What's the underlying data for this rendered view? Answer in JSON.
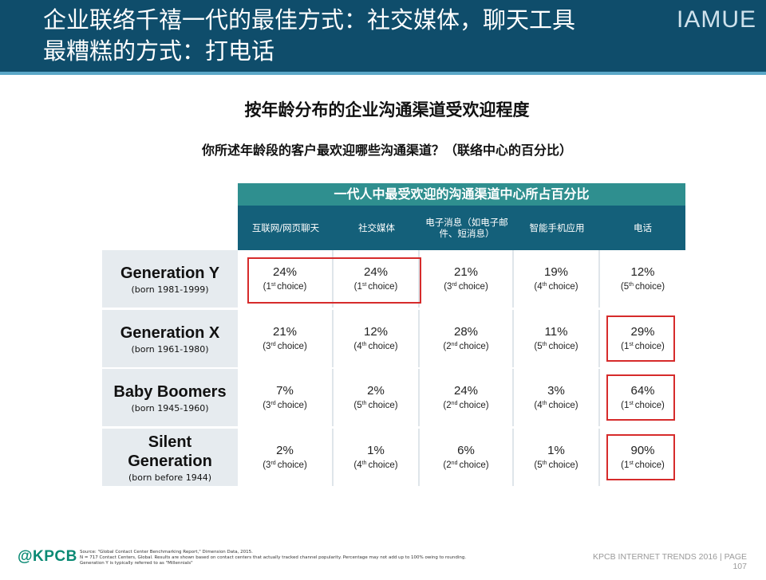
{
  "header": {
    "title_line1": "企业联络千禧一代的最佳方式：社交媒体，聊天工具",
    "title_line2": "最糟糕的方式：打电话",
    "brand": "IAMUE"
  },
  "chart": {
    "title": "按年龄分布的企业沟通渠道受欢迎程度",
    "subtitle": "你所述年龄段的客户最欢迎哪些沟通渠道？（联络中心的百分比）",
    "banner": "一代人中最受欢迎的沟通渠道中心所占百分比",
    "columns": [
      "互联网/网页聊天",
      "社交媒体",
      "电子消息（如电子邮件、短消息）",
      "智能手机应用",
      "电话"
    ]
  },
  "chart_data": {
    "type": "table",
    "title": "按年龄分布的企业沟通渠道受欢迎程度",
    "columns": [
      "互联网/网页聊天",
      "社交媒体",
      "电子消息（如电子邮件、短消息）",
      "智能手机应用",
      "电话"
    ],
    "rows": [
      {
        "name": "Generation Y",
        "born": "(born 1981-1999)",
        "cells": [
          {
            "value": "24%",
            "rank": "1",
            "suffix": "st"
          },
          {
            "value": "24%",
            "rank": "1",
            "suffix": "st"
          },
          {
            "value": "21%",
            "rank": "3",
            "suffix": "rd"
          },
          {
            "value": "19%",
            "rank": "4",
            "suffix": "th"
          },
          {
            "value": "12%",
            "rank": "5",
            "suffix": "th"
          }
        ]
      },
      {
        "name": "Generation X",
        "born": "(born 1961-1980)",
        "cells": [
          {
            "value": "21%",
            "rank": "3",
            "suffix": "rd"
          },
          {
            "value": "12%",
            "rank": "4",
            "suffix": "th"
          },
          {
            "value": "28%",
            "rank": "2",
            "suffix": "nd"
          },
          {
            "value": "11%",
            "rank": "5",
            "suffix": "th"
          },
          {
            "value": "29%",
            "rank": "1",
            "suffix": "st"
          }
        ]
      },
      {
        "name": "Baby Boomers",
        "born": "(born 1945-1960)",
        "cells": [
          {
            "value": "7%",
            "rank": "3",
            "suffix": "rd"
          },
          {
            "value": "2%",
            "rank": "5",
            "suffix": "th"
          },
          {
            "value": "24%",
            "rank": "2",
            "suffix": "nd"
          },
          {
            "value": "3%",
            "rank": "4",
            "suffix": "th"
          },
          {
            "value": "64%",
            "rank": "1",
            "suffix": "st"
          }
        ]
      },
      {
        "name": "Silent Generation",
        "born": "(born before 1944)",
        "cells": [
          {
            "value": "2%",
            "rank": "3",
            "suffix": "rd"
          },
          {
            "value": "1%",
            "rank": "4",
            "suffix": "th"
          },
          {
            "value": "6%",
            "rank": "2",
            "suffix": "nd"
          },
          {
            "value": "1%",
            "rank": "5",
            "suffix": "th"
          },
          {
            "value": "90%",
            "rank": "1",
            "suffix": "st"
          }
        ]
      }
    ],
    "choice_word": "choice",
    "highlight_color": "#d62b2b"
  },
  "footer": {
    "logo": "@KPCB",
    "source_lines": [
      "Source: \"Global Contact Center Benchmarking Report,\" Dimension Data, 2015.",
      "N = 717 Contact Centers, Global. Results are shown based on contact centers that actually tracked channel popularity. Percentage may not add up to 100% owing to rounding.",
      "Generation Y is typically referred to as \"Millennials\""
    ],
    "report": "KPCB INTERNET TRENDS 2016",
    "separator": "|",
    "page_label": "PAGE",
    "page_number": "107"
  },
  "colors": {
    "header_bg": "#0f4d6b",
    "banner_bg": "#2f8f8f",
    "colhead_bg": "#14607a",
    "kpcb_green": "#0a8a74"
  }
}
